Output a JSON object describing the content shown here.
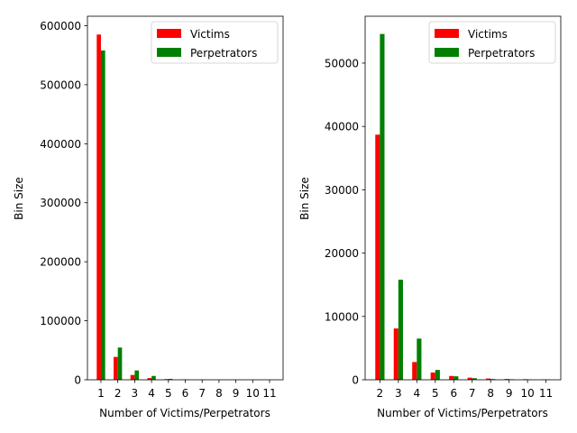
{
  "colors": {
    "victims": "#ff0000",
    "perpetrators": "#008000",
    "axes": "#000000",
    "legend_frame": "#cccccc"
  },
  "chart_data": [
    {
      "type": "bar",
      "xlabel": "Number of Victims/Perpetrators",
      "ylabel": "Bin Size",
      "categories": [
        "1",
        "2",
        "3",
        "4",
        "5",
        "6",
        "7",
        "8",
        "9",
        "10",
        "11"
      ],
      "x": [
        1,
        2,
        3,
        4,
        5,
        6,
        7,
        8,
        9,
        10,
        11
      ],
      "ylim": [
        0,
        616000
      ],
      "xlim": [
        0.2,
        11.8
      ],
      "yticks": [
        0,
        100000,
        200000,
        300000,
        400000,
        500000,
        600000
      ],
      "ytick_labels": [
        "0",
        "100000",
        "200000",
        "300000",
        "400000",
        "500000",
        "600000"
      ],
      "legend": {
        "position": "top-right",
        "entries": [
          "Victims",
          "Perpetrators"
        ]
      },
      "grid": false,
      "series": [
        {
          "name": "Victims",
          "color": "#ff0000",
          "values": [
            585000,
            38700,
            8100,
            2800,
            1150,
            600,
            330,
            200,
            130,
            90,
            60
          ]
        },
        {
          "name": "Perpetrators",
          "color": "#008000",
          "values": [
            558000,
            54600,
            15800,
            6500,
            1550,
            550,
            250,
            120,
            80,
            50,
            40
          ]
        }
      ]
    },
    {
      "type": "bar",
      "xlabel": "Number of Victims/Perpetrators",
      "ylabel": "Bin Size",
      "categories": [
        "2",
        "3",
        "4",
        "5",
        "6",
        "7",
        "8",
        "9",
        "10",
        "11"
      ],
      "x": [
        2,
        3,
        4,
        5,
        6,
        7,
        8,
        9,
        10,
        11
      ],
      "ylim": [
        0,
        57400
      ],
      "xlim": [
        1.2,
        11.8
      ],
      "yticks": [
        0,
        10000,
        20000,
        30000,
        40000,
        50000
      ],
      "ytick_labels": [
        "0",
        "10000",
        "20000",
        "30000",
        "40000",
        "50000"
      ],
      "legend": {
        "position": "top-right",
        "entries": [
          "Victims",
          "Perpetrators"
        ]
      },
      "grid": false,
      "series": [
        {
          "name": "Victims",
          "color": "#ff0000",
          "values": [
            38700,
            8100,
            2800,
            1150,
            600,
            330,
            200,
            130,
            90,
            60
          ]
        },
        {
          "name": "Perpetrators",
          "color": "#008000",
          "values": [
            54600,
            15800,
            6500,
            1550,
            550,
            250,
            120,
            80,
            50,
            40
          ]
        }
      ]
    }
  ]
}
